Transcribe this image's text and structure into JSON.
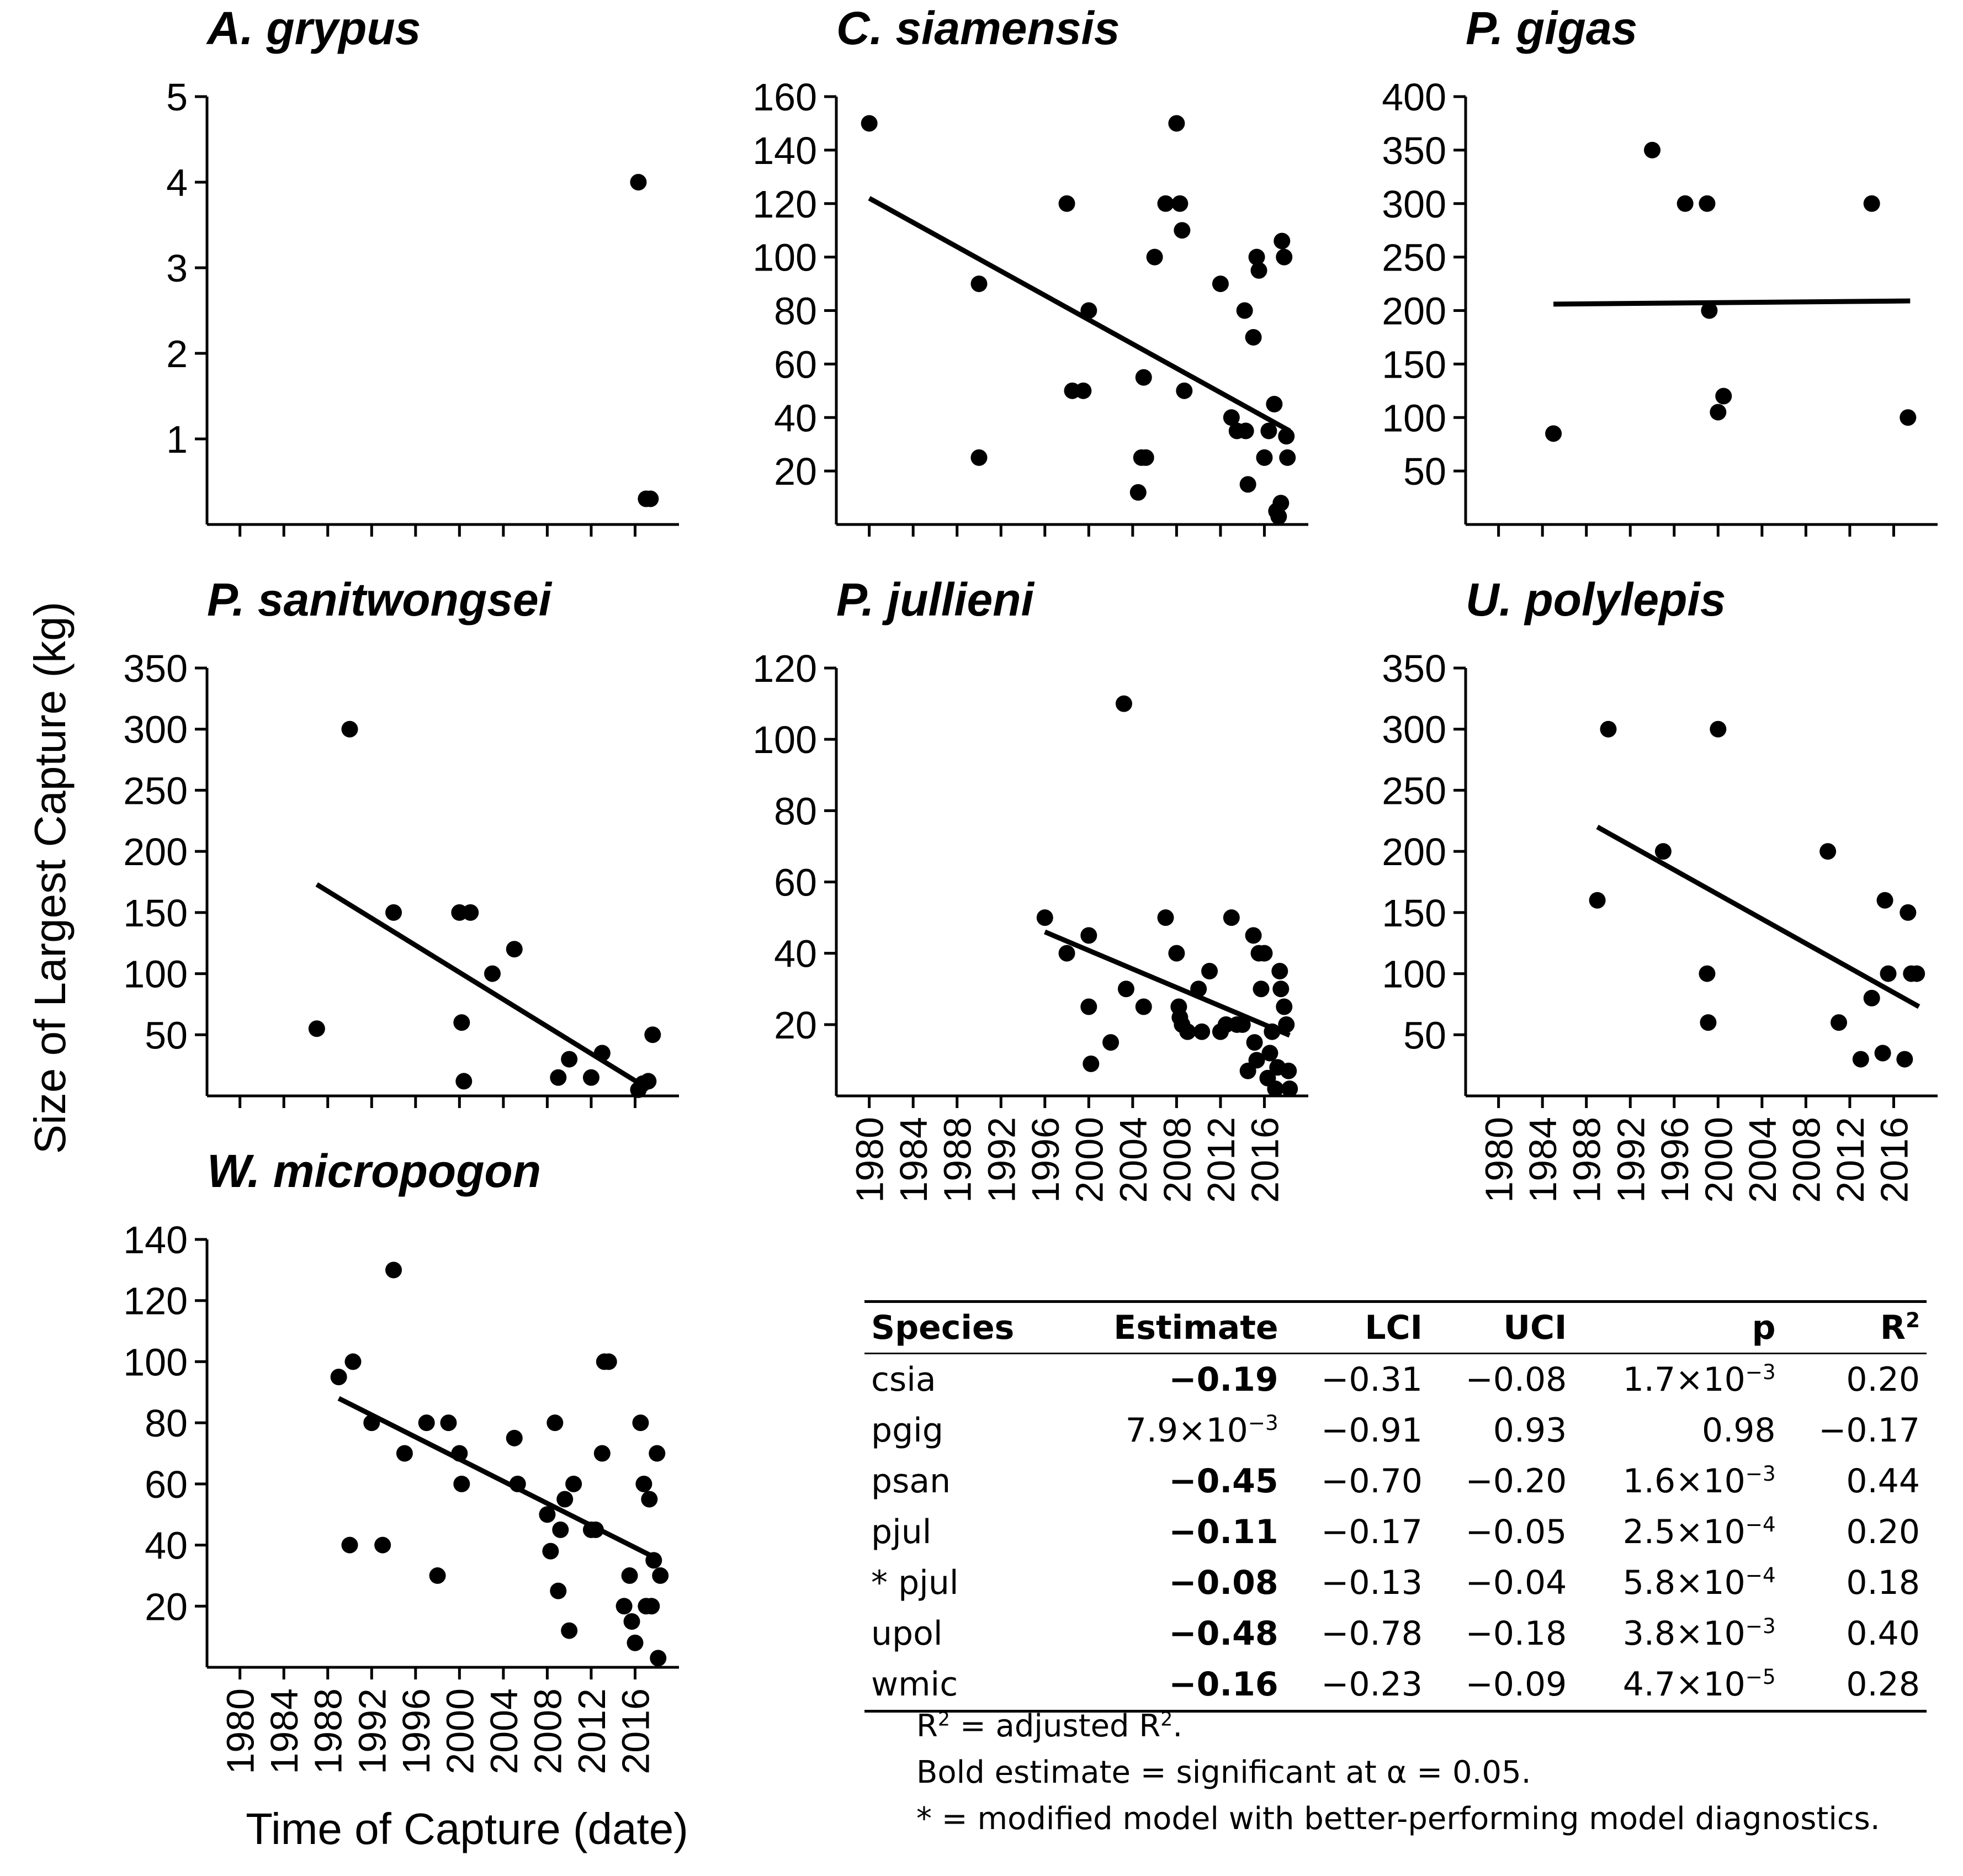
{
  "figure": {
    "ylabel": "Size of Largest Capture (kg)",
    "xlabel": "Time of Capture (date)",
    "colors": {
      "ink": "#000000",
      "background": "#ffffff"
    }
  },
  "chart_data": [
    {
      "id": "agry",
      "type": "scatter",
      "title": "A. grypus",
      "xlim": [
        1977,
        2020
      ],
      "ylim": [
        0,
        5
      ],
      "yticks": [
        1,
        2,
        3,
        4,
        5
      ],
      "xticks": [
        1980,
        1984,
        1988,
        1992,
        1996,
        2000,
        2004,
        2008,
        2012,
        2016
      ],
      "show_xtick_labels": false,
      "x": [
        2016.3,
        2017.0,
        2017.4
      ],
      "y": [
        4.0,
        0.3,
        0.3
      ],
      "fit": null
    },
    {
      "id": "csia",
      "type": "scatter",
      "title": "C. siamensis",
      "xlim": [
        1977,
        2020
      ],
      "ylim": [
        0,
        160
      ],
      "yticks": [
        20,
        40,
        60,
        80,
        100,
        120,
        140,
        160
      ],
      "xticks": [
        1980,
        1984,
        1988,
        1992,
        1996,
        2000,
        2004,
        2008,
        2012,
        2016
      ],
      "show_xtick_labels": false,
      "x": [
        1980,
        1990,
        1990,
        1998,
        1998.5,
        1999.5,
        2000,
        2004.5,
        2004.8,
        2005,
        2005.2,
        2006,
        2007,
        2008,
        2008.3,
        2008.5,
        2008.7,
        2012,
        2013,
        2013.5,
        2014.2,
        2014.3,
        2014.5,
        2015,
        2015.3,
        2015.5,
        2016,
        2016.4,
        2016.9,
        2017.1,
        2017.3,
        2017.5,
        2017.6,
        2017.8,
        2018,
        2018.1
      ],
      "y": [
        150,
        90,
        25,
        120,
        50,
        50,
        80,
        12,
        25,
        55,
        25,
        100,
        120,
        150,
        120,
        110,
        50,
        90,
        40,
        35,
        80,
        35,
        15,
        70,
        100,
        95,
        25,
        35,
        45,
        5,
        3,
        8,
        106,
        100,
        33,
        25
      ],
      "fit": {
        "x": [
          1980,
          2018.3
        ],
        "y": [
          122,
          35
        ]
      }
    },
    {
      "id": "pgig",
      "type": "scatter",
      "title": "P. gigas",
      "xlim": [
        1977,
        2020
      ],
      "ylim": [
        0,
        400
      ],
      "yticks": [
        50,
        100,
        150,
        200,
        250,
        300,
        350,
        400
      ],
      "xticks": [
        1980,
        1984,
        1988,
        1992,
        1996,
        2000,
        2004,
        2008,
        2012,
        2016
      ],
      "show_xtick_labels": false,
      "x": [
        1985,
        1994,
        1997,
        1999,
        1999.2,
        2000,
        2000.5,
        2014,
        2017.3
      ],
      "y": [
        85,
        350,
        300,
        300,
        200,
        105,
        120,
        300,
        100
      ],
      "fit": {
        "x": [
          1985,
          2017.5
        ],
        "y": [
          206,
          209
        ]
      }
    },
    {
      "id": "psan",
      "type": "scatter",
      "title": "P. sanitwongsei",
      "xlim": [
        1977,
        2020
      ],
      "ylim": [
        0,
        350
      ],
      "yticks": [
        50,
        100,
        150,
        200,
        250,
        300,
        350
      ],
      "xticks": [
        1980,
        1984,
        1988,
        1992,
        1996,
        2000,
        2004,
        2008,
        2012,
        2016
      ],
      "show_xtick_labels": false,
      "x": [
        1987,
        1990,
        1994,
        2000,
        2000.2,
        2000.4,
        2001,
        2003,
        2005,
        2009,
        2010,
        2012,
        2013,
        2016.3,
        2016.7,
        2017.2,
        2017.6
      ],
      "y": [
        55,
        300,
        150,
        150,
        60,
        12,
        150,
        100,
        120,
        15,
        30,
        15,
        35,
        5,
        10,
        12,
        50
      ],
      "fit": {
        "x": [
          1987,
          2016.8
        ],
        "y": [
          173,
          8
        ]
      }
    },
    {
      "id": "pjul",
      "type": "scatter",
      "title": "P. jullieni",
      "xlim": [
        1977,
        2020
      ],
      "ylim": [
        0,
        120
      ],
      "yticks": [
        20,
        40,
        60,
        80,
        100,
        120
      ],
      "xticks": [
        1980,
        1984,
        1988,
        1992,
        1996,
        2000,
        2004,
        2008,
        2012,
        2016
      ],
      "show_xtick_labels": true,
      "x": [
        1996,
        1998,
        2000,
        2000,
        2000.2,
        2002,
        2003.2,
        2003.4,
        2005,
        2007,
        2008,
        2008.2,
        2008.3,
        2008.5,
        2009,
        2010,
        2010.3,
        2011,
        2012,
        2012.5,
        2013,
        2013.5,
        2014,
        2014.5,
        2015,
        2015.1,
        2015.3,
        2015.5,
        2015.7,
        2016,
        2016.3,
        2016.5,
        2016.7,
        2017,
        2017.2,
        2017.4,
        2017.5,
        2017.8,
        2018,
        2018.2,
        2018.3
      ],
      "y": [
        50,
        40,
        45,
        25,
        9,
        15,
        110,
        30,
        25,
        50,
        40,
        25,
        22,
        20,
        18,
        30,
        18,
        35,
        18,
        20,
        50,
        20,
        20,
        7,
        45,
        15,
        10,
        40,
        30,
        40,
        5,
        12,
        18,
        2,
        8,
        35,
        30,
        25,
        20,
        7,
        2
      ],
      "fit": {
        "x": [
          1996,
          2018.3
        ],
        "y": [
          46,
          17
        ]
      }
    },
    {
      "id": "upol",
      "type": "scatter",
      "title": "U. polylepis",
      "xlim": [
        1977,
        2020
      ],
      "ylim": [
        0,
        350
      ],
      "yticks": [
        50,
        100,
        150,
        200,
        250,
        300,
        350
      ],
      "xticks": [
        1980,
        1984,
        1988,
        1992,
        1996,
        2000,
        2004,
        2008,
        2012,
        2016
      ],
      "show_xtick_labels": true,
      "x": [
        1989,
        1990,
        1995,
        1999,
        1999.1,
        2000,
        2010,
        2011,
        2013,
        2014,
        2015,
        2015.2,
        2015.5,
        2017,
        2017.3,
        2017.6,
        2018.1
      ],
      "y": [
        160,
        300,
        200,
        100,
        60,
        300,
        200,
        60,
        30,
        80,
        35,
        160,
        100,
        30,
        150,
        100,
        100
      ],
      "fit": {
        "x": [
          1989,
          2018.3
        ],
        "y": [
          220,
          73
        ]
      }
    },
    {
      "id": "wmic",
      "type": "scatter",
      "title": "W. micropogon",
      "xlim": [
        1977,
        2020
      ],
      "ylim": [
        0,
        140
      ],
      "yticks": [
        20,
        40,
        60,
        80,
        100,
        120,
        140
      ],
      "xticks": [
        1980,
        1984,
        1988,
        1992,
        1996,
        2000,
        2004,
        2008,
        2012,
        2016
      ],
      "show_xtick_labels": true,
      "x": [
        1989,
        1990,
        1990.3,
        1992,
        1993,
        1994,
        1995,
        1997,
        1998,
        1999,
        2000,
        2000.2,
        2005,
        2005.3,
        2008,
        2008.3,
        2008.7,
        2009,
        2009.2,
        2009.6,
        2010,
        2010.4,
        2012,
        2012.4,
        2013,
        2013.2,
        2013.6,
        2015,
        2015.5,
        2015.7,
        2016,
        2016.5,
        2016.8,
        2017,
        2017.3,
        2017.5,
        2017.7,
        2018,
        2018.1,
        2018.3
      ],
      "y": [
        95,
        40,
        100,
        80,
        40,
        130,
        70,
        80,
        30,
        80,
        70,
        60,
        75,
        60,
        50,
        38,
        80,
        25,
        45,
        55,
        12,
        60,
        45,
        45,
        70,
        100,
        100,
        20,
        30,
        15,
        8,
        80,
        60,
        20,
        55,
        20,
        35,
        70,
        3,
        30
      ],
      "fit": {
        "x": [
          1989,
          2018.3
        ],
        "y": [
          88,
          35
        ]
      }
    }
  ],
  "table": {
    "headers": {
      "species": "Species",
      "estimate": "Estimate",
      "lci": "LCI",
      "uci": "UCI",
      "p": "p",
      "r2": "R",
      "r2_sup": "2"
    },
    "rows": [
      {
        "species": "csia",
        "estimate": "−0.19",
        "estimate_sup": "",
        "lci": "−0.31",
        "uci": "−0.08",
        "p": "1.7×10",
        "p_exp": "−3",
        "r2": "0.20",
        "significant": true
      },
      {
        "species": "pgig",
        "estimate": "7.9×10",
        "estimate_sup": "−3",
        "lci": "−0.91",
        "uci": "0.93",
        "p": "0.98",
        "p_exp": "",
        "r2": "−0.17",
        "significant": false
      },
      {
        "species": "psan",
        "estimate": "−0.45",
        "estimate_sup": "",
        "lci": "−0.70",
        "uci": "−0.20",
        "p": "1.6×10",
        "p_exp": "−3",
        "r2": "0.44",
        "significant": true
      },
      {
        "species": "pjul",
        "estimate": "−0.11",
        "estimate_sup": "",
        "lci": "−0.17",
        "uci": "−0.05",
        "p": "2.5×10",
        "p_exp": "−4",
        "r2": "0.20",
        "significant": true
      },
      {
        "species": "* pjul",
        "estimate": "−0.08",
        "estimate_sup": "",
        "lci": "−0.13",
        "uci": "−0.04",
        "p": "5.8×10",
        "p_exp": "−4",
        "r2": "0.18",
        "significant": true
      },
      {
        "species": "upol",
        "estimate": "−0.48",
        "estimate_sup": "",
        "lci": "−0.78",
        "uci": "−0.18",
        "p": "3.8×10",
        "p_exp": "−3",
        "r2": "0.40",
        "significant": true
      },
      {
        "species": "wmic",
        "estimate": "−0.16",
        "estimate_sup": "",
        "lci": "−0.23",
        "uci": "−0.09",
        "p": "4.7×10",
        "p_exp": "−5",
        "r2": "0.28",
        "significant": true
      }
    ]
  },
  "notes": {
    "r2_prefix": "R",
    "r2_sup": "2",
    "r2_rest": " = adjusted R",
    "r2_sup2": "2",
    "r2_end": ".",
    "bold": "Bold estimate = significant at α = 0.05.",
    "star": "* = modified model with better-performing model diagnostics."
  }
}
